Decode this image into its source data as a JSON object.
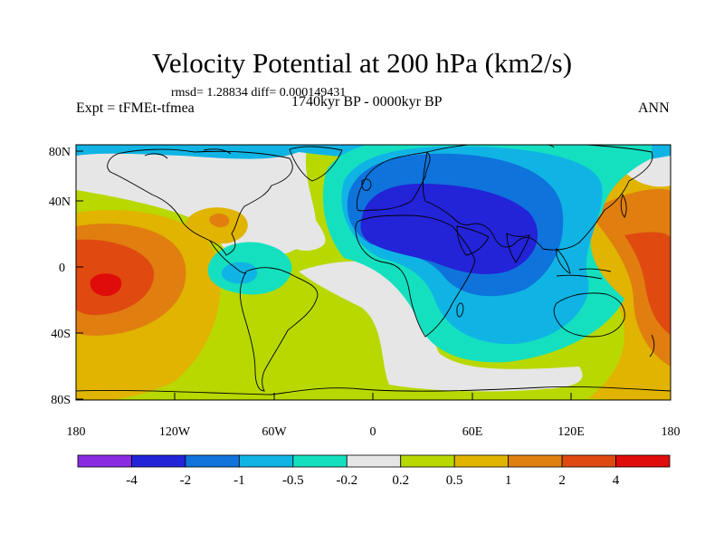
{
  "title": "Velocity Potential at 200 hPa (km2/s)",
  "stats_line": "rmsd= 1.28834 diff= 0.000149431",
  "experiment": "Expt = tFMEt-tfmea",
  "period": "1740kyr BP - 0000kyr BP",
  "season": "ANN",
  "map": {
    "lat_ticks": [
      "80N",
      "40N",
      "0",
      "40S",
      "80S"
    ],
    "lon_ticks": [
      "180",
      "120W",
      "60W",
      "0",
      "60E",
      "120E",
      "180"
    ]
  },
  "colorbar": {
    "colors": [
      "#8a2be2",
      "#2323d8",
      "#0f73dc",
      "#10b4e4",
      "#14e0c0",
      "#e6e6e6",
      "#b8d800",
      "#e0b400",
      "#e07e10",
      "#e04a10",
      "#e00c0c"
    ],
    "labels": [
      "-4",
      "-2",
      "-1",
      "-0.5",
      "-0.2",
      "0.2",
      "0.5",
      "1",
      "2",
      "4"
    ]
  },
  "regions": [
    {
      "name": "background",
      "color": "#b8d800"
    },
    {
      "name": "warm-pacific-west",
      "color": "#e0b400"
    },
    {
      "name": "warm-pacific-core",
      "color": "#e07e10"
    },
    {
      "name": "warm-pacific-inner",
      "color": "#e04a10"
    },
    {
      "name": "warm-pacific-max",
      "color": "#e00c0c"
    },
    {
      "name": "warm-east-asia",
      "color": "#e0b400"
    },
    {
      "name": "warm-east-asia-core",
      "color": "#e07e10"
    },
    {
      "name": "warm-east-asia-inner",
      "color": "#e04a10"
    },
    {
      "name": "neutral-arctic-america",
      "color": "#e6e6e6"
    },
    {
      "name": "neutral-atlantic",
      "color": "#e6e6e6"
    },
    {
      "name": "neutral-south-atlantic",
      "color": "#e6e6e6"
    },
    {
      "name": "neutral-northeast",
      "color": "#e6e6e6"
    },
    {
      "name": "arctic-band",
      "color": "#10b4e4"
    },
    {
      "name": "negative-outer",
      "color": "#14e0c0"
    },
    {
      "name": "negative-mid",
      "color": "#10b4e4"
    },
    {
      "name": "negative-strong",
      "color": "#0f73dc"
    },
    {
      "name": "negative-core",
      "color": "#2323d8"
    },
    {
      "name": "caribbean-low",
      "color": "#14e0c0"
    },
    {
      "name": "caribbean-low-inner",
      "color": "#10b4e4"
    },
    {
      "name": "gulf-high",
      "color": "#e0b400"
    },
    {
      "name": "gulf-high-inner",
      "color": "#e07e10"
    }
  ]
}
